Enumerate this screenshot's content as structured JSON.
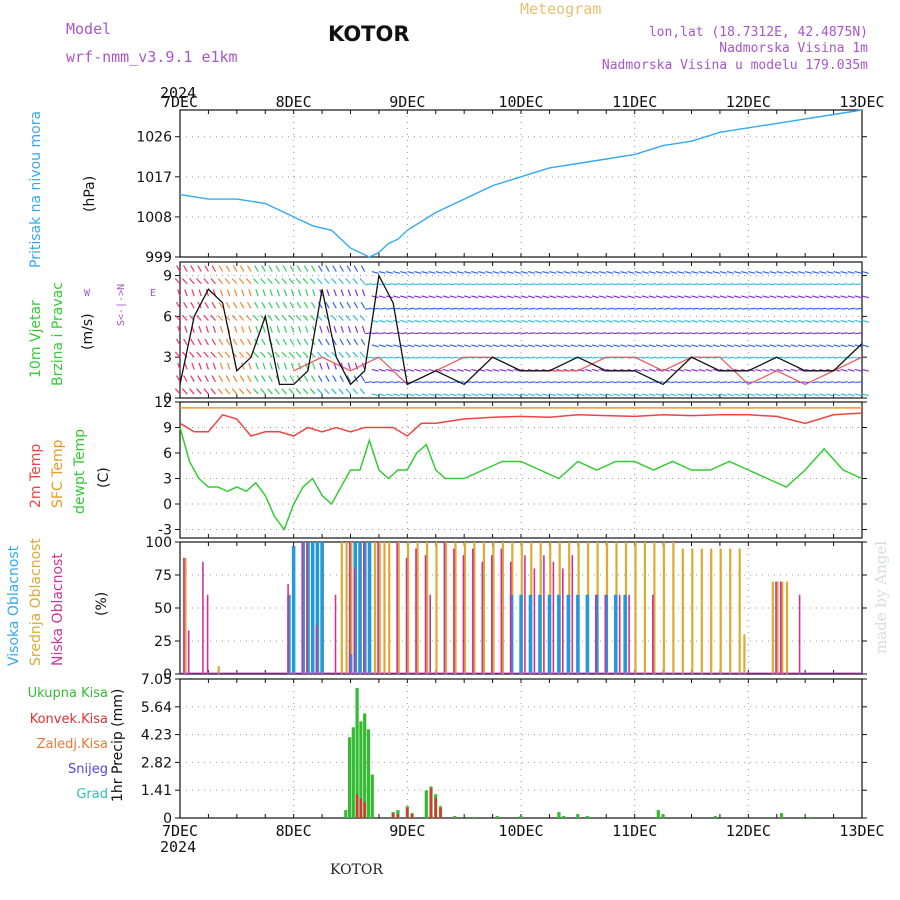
{
  "header": {
    "model_label": "Model",
    "model_name": "wrf-nmm_v3.9.1 e1km",
    "station": "KOTOR",
    "meteogram": "Meteogram",
    "lonlat": "lon,lat (18.7312E, 42.4875N)",
    "elev": "Nadmorska Visina 1m",
    "elev_model": "Nadmorska Visina u modelu 179.035m",
    "watermark": "made by Angel",
    "footer_station": "KOTOR",
    "year": "2024"
  },
  "time_axis": {
    "ticks": [
      "7DEC",
      "8DEC",
      "9DEC",
      "10DEC",
      "11DEC",
      "12DEC",
      "13DEC"
    ],
    "hours_total": 144
  },
  "colors": {
    "pressure": "#33aaee",
    "temp2m": "#ee4444",
    "sfc_temp": "#ee9922",
    "dewpoint": "#33cc33",
    "cloud_high": "#2299dd",
    "cloud_mid": "#ddaa33",
    "cloud_low": "#cc3399",
    "precip_total": "#33bb33",
    "precip_conv": "#dd3333",
    "precip_frozen": "#ee7733",
    "precip_snow": "#5544dd",
    "precip_graupel": "#33bbbb"
  },
  "chart_data": [
    {
      "name": "pressure",
      "type": "line",
      "ylabel_left": "Pritisak na nivou mora",
      "ylabel_unit": "(hPa)",
      "ylim": [
        999,
        1032
      ],
      "yticks": [
        999,
        1008,
        1017,
        1026
      ],
      "x": [
        0,
        6,
        12,
        18,
        24,
        28,
        32,
        36,
        40,
        42,
        44,
        46,
        48,
        54,
        60,
        66,
        72,
        78,
        84,
        90,
        96,
        102,
        108,
        114,
        120,
        126,
        132,
        138,
        144
      ],
      "y": [
        1013,
        1012,
        1012,
        1011,
        1008,
        1006,
        1005,
        1001,
        999,
        1000,
        1002,
        1003,
        1005,
        1009,
        1012,
        1015,
        1017,
        1019,
        1020,
        1021,
        1022,
        1024,
        1025,
        1027,
        1028,
        1029,
        1030,
        1031,
        1032
      ]
    },
    {
      "name": "wind",
      "type": "line",
      "ylabel_left": "10m Vjetar",
      "ylabel_left2": "Brzina i Pravac",
      "ylabel_unit": "(m/s)",
      "ylim": [
        0,
        10
      ],
      "yticks": [
        0,
        3,
        6,
        9
      ],
      "compass_ns": "S<-|->N",
      "compass_w": "W",
      "compass_e": "E",
      "series": [
        {
          "name": "speed",
          "x": [
            0,
            3,
            6,
            9,
            12,
            15,
            18,
            21,
            24,
            27,
            30,
            33,
            36,
            39,
            42,
            45,
            48,
            54,
            60,
            66,
            72,
            78,
            84,
            90,
            96,
            102,
            108,
            114,
            120,
            126,
            132,
            138,
            144
          ],
          "y": [
            1,
            6,
            8,
            7,
            2,
            3,
            6,
            1,
            1,
            2,
            8,
            3,
            1,
            2,
            9,
            7,
            1,
            2,
            1,
            3,
            2,
            2,
            3,
            2,
            2,
            1,
            3,
            2,
            2,
            3,
            2,
            2,
            4
          ]
        },
        {
          "name": "gust",
          "x": [
            24,
            30,
            36,
            42,
            48,
            54,
            60,
            66,
            72,
            78,
            84,
            90,
            96,
            102,
            108,
            114,
            120,
            126,
            132,
            138,
            144
          ],
          "y": [
            2,
            3,
            2,
            3,
            1,
            2,
            3,
            3,
            2,
            2,
            2,
            3,
            3,
            2,
            3,
            3,
            1,
            2,
            1,
            2,
            3
          ]
        }
      ]
    },
    {
      "name": "temperature",
      "type": "line",
      "ylabel_left": "2m Temp",
      "ylabel_left2": "SFC Temp",
      "ylabel_left3": "dewpt Temp",
      "ylabel_unit": "(C)",
      "ylim": [
        -4,
        12
      ],
      "yticks": [
        -3,
        0,
        3,
        6,
        9,
        12
      ],
      "series": [
        {
          "name": "2m",
          "x": [
            0,
            3,
            6,
            9,
            12,
            15,
            18,
            21,
            24,
            27,
            30,
            33,
            36,
            39,
            42,
            45,
            48,
            51,
            54,
            60,
            66,
            72,
            78,
            84,
            90,
            96,
            102,
            108,
            114,
            120,
            126,
            132,
            138,
            144
          ],
          "y": [
            9.5,
            8.5,
            8.5,
            10.5,
            10,
            8,
            8.5,
            8.5,
            8,
            9,
            8.5,
            9,
            8.5,
            9,
            9,
            9,
            8,
            9.5,
            9.5,
            10,
            10.2,
            10.3,
            10.2,
            10.5,
            10.4,
            10.3,
            10.5,
            10.4,
            10.5,
            10.5,
            10.3,
            9.5,
            10.5,
            10.7
          ]
        },
        {
          "name": "sfc",
          "x": [
            0,
            144
          ],
          "y": [
            11.3,
            11.3
          ]
        },
        {
          "name": "dewpt",
          "x": [
            0,
            2,
            4,
            6,
            8,
            10,
            12,
            14,
            16,
            18,
            20,
            22,
            24,
            26,
            28,
            30,
            32,
            34,
            36,
            38,
            40,
            42,
            44,
            46,
            48,
            50,
            52,
            54,
            56,
            58,
            60,
            64,
            68,
            72,
            76,
            80,
            84,
            88,
            92,
            96,
            100,
            104,
            108,
            112,
            116,
            120,
            124,
            128,
            132,
            136,
            140,
            144
          ],
          "y": [
            9,
            5,
            3,
            2,
            2,
            1.5,
            2,
            1.5,
            2.5,
            1,
            -1.5,
            -3,
            0,
            2,
            3,
            1,
            0,
            2,
            4,
            4,
            7.5,
            4,
            3,
            4,
            4,
            6,
            7,
            4,
            3,
            3,
            3,
            4,
            5,
            5,
            4,
            3,
            5,
            4,
            5,
            5,
            4,
            5,
            4,
            4,
            5,
            4,
            3,
            2,
            4,
            6.5,
            4,
            3
          ]
        }
      ]
    },
    {
      "name": "cloud",
      "type": "bar",
      "ylabel_left": "Visoka Oblacnost",
      "ylabel_left2": "Srednja Oblacnost",
      "ylabel_left3": "Niska Oblacnost",
      "ylabel_unit": "(%)",
      "ylim": [
        0,
        100
      ],
      "yticks": [
        0,
        25,
        50,
        75,
        100
      ],
      "series": [
        {
          "name": "high",
          "x": [
            23,
            24,
            26,
            27,
            28,
            29,
            30,
            36,
            37,
            38,
            39,
            40,
            70,
            72,
            74,
            76,
            78,
            80,
            82,
            84,
            86,
            88,
            90,
            92,
            94
          ],
          "y": [
            60,
            97,
            100,
            100,
            100,
            100,
            100,
            15,
            100,
            100,
            100,
            100,
            60,
            60,
            60,
            60,
            60,
            60,
            60,
            60,
            60,
            60,
            60,
            60,
            60
          ]
        },
        {
          "name": "mid",
          "x": [
            1,
            8,
            26,
            27,
            28,
            29,
            30,
            34,
            35,
            36,
            37,
            38,
            39,
            40,
            41,
            42,
            43,
            44,
            46,
            48,
            50,
            52,
            54,
            56,
            58,
            60,
            62,
            64,
            66,
            68,
            70,
            72,
            74,
            76,
            78,
            80,
            82,
            84,
            86,
            88,
            90,
            92,
            94,
            96,
            98,
            100,
            102,
            104,
            106,
            108,
            110,
            112,
            114,
            116,
            118,
            119,
            125,
            126,
            127,
            128
          ],
          "y": [
            88,
            6,
            100,
            100,
            100,
            100,
            100,
            100,
            100,
            100,
            100,
            100,
            100,
            100,
            100,
            100,
            100,
            100,
            100,
            100,
            100,
            100,
            100,
            100,
            100,
            100,
            100,
            100,
            100,
            100,
            100,
            100,
            100,
            100,
            100,
            100,
            100,
            100,
            100,
            100,
            100,
            100,
            100,
            100,
            100,
            100,
            100,
            100,
            95,
            95,
            95,
            95,
            95,
            95,
            95,
            30,
            70,
            70,
            70,
            70
          ]
        },
        {
          "name": "low",
          "x": [
            1,
            2,
            5,
            6,
            23,
            26,
            27,
            29,
            33,
            36,
            37,
            39,
            42,
            46,
            48,
            50,
            52,
            53,
            56,
            58,
            60,
            62,
            64,
            66,
            68,
            70,
            73,
            75,
            77,
            79,
            81,
            83,
            88,
            90,
            93,
            95,
            100,
            126,
            127,
            131
          ],
          "y": [
            88,
            33,
            85,
            60,
            68,
            100,
            100,
            37,
            60,
            100,
            80,
            100,
            100,
            100,
            88,
            95,
            90,
            60,
            100,
            95,
            90,
            95,
            85,
            90,
            95,
            85,
            90,
            80,
            90,
            85,
            80,
            90,
            60,
            60,
            60,
            60,
            60,
            70,
            70,
            60
          ]
        }
      ]
    },
    {
      "name": "precip",
      "type": "bar",
      "ylabel_left": "Ukupna Kisa",
      "ylabel_left2": "Konvek.Kisa",
      "ylabel_left3": "Zaledj.Kisa",
      "ylabel_left4": "Snijeg",
      "ylabel_left5": "Grad",
      "ylabel_unit": "1hr Precip (mm)",
      "ylim": [
        0,
        7.05
      ],
      "yticks": [
        0,
        1.41,
        2.82,
        4.23,
        5.64,
        7.05
      ],
      "series": [
        {
          "name": "total",
          "x": [
            35,
            35.8,
            36.6,
            37.4,
            38.2,
            39,
            39.8,
            40.6,
            45,
            46,
            48,
            49,
            52,
            53,
            54,
            55,
            58,
            62,
            67,
            72,
            80,
            81,
            84,
            86,
            87,
            101,
            102,
            113,
            127,
            133
          ],
          "y": [
            0.4,
            4.1,
            4.6,
            6.6,
            4.9,
            5.3,
            4.5,
            2.2,
            0.3,
            0.4,
            0.6,
            0.25,
            1.4,
            1.6,
            1.2,
            0.6,
            0.1,
            0.05,
            0.1,
            0.1,
            0.3,
            0.1,
            0.2,
            0.1,
            0.05,
            0.4,
            0.2,
            0.1,
            0.25,
            0.05
          ]
        },
        {
          "name": "conv",
          "x": [
            37.4,
            38.2,
            39,
            45,
            46,
            48,
            49,
            53,
            54,
            55
          ],
          "y": [
            1.2,
            1,
            0.8,
            0.25,
            0.2,
            0.5,
            0.2,
            1.5,
            1,
            0.5
          ]
        }
      ]
    }
  ],
  "legend_labels": {
    "pressure": "Pritisak na nivou mora",
    "pressure_unit": "(hPa)",
    "wind1": "10m Vjetar",
    "wind2": "Brzina i Pravac",
    "wind_unit": "(m/s)",
    "t1": "2m Temp",
    "t2": "SFC Temp",
    "t3": "dewpt Temp",
    "t_unit": "(C)",
    "c1": "Visoka Oblacnost",
    "c2": "Srednja Oblacnost",
    "c3": "Niska Oblacnost",
    "c_unit": "(%)",
    "p1": "Ukupna Kisa",
    "p2": "Konvek.Kisa",
    "p3": "Zaledj.Kisa",
    "p4": "Snijeg",
    "p5": "Grad",
    "p_unit": "1hr Precip (mm)"
  }
}
